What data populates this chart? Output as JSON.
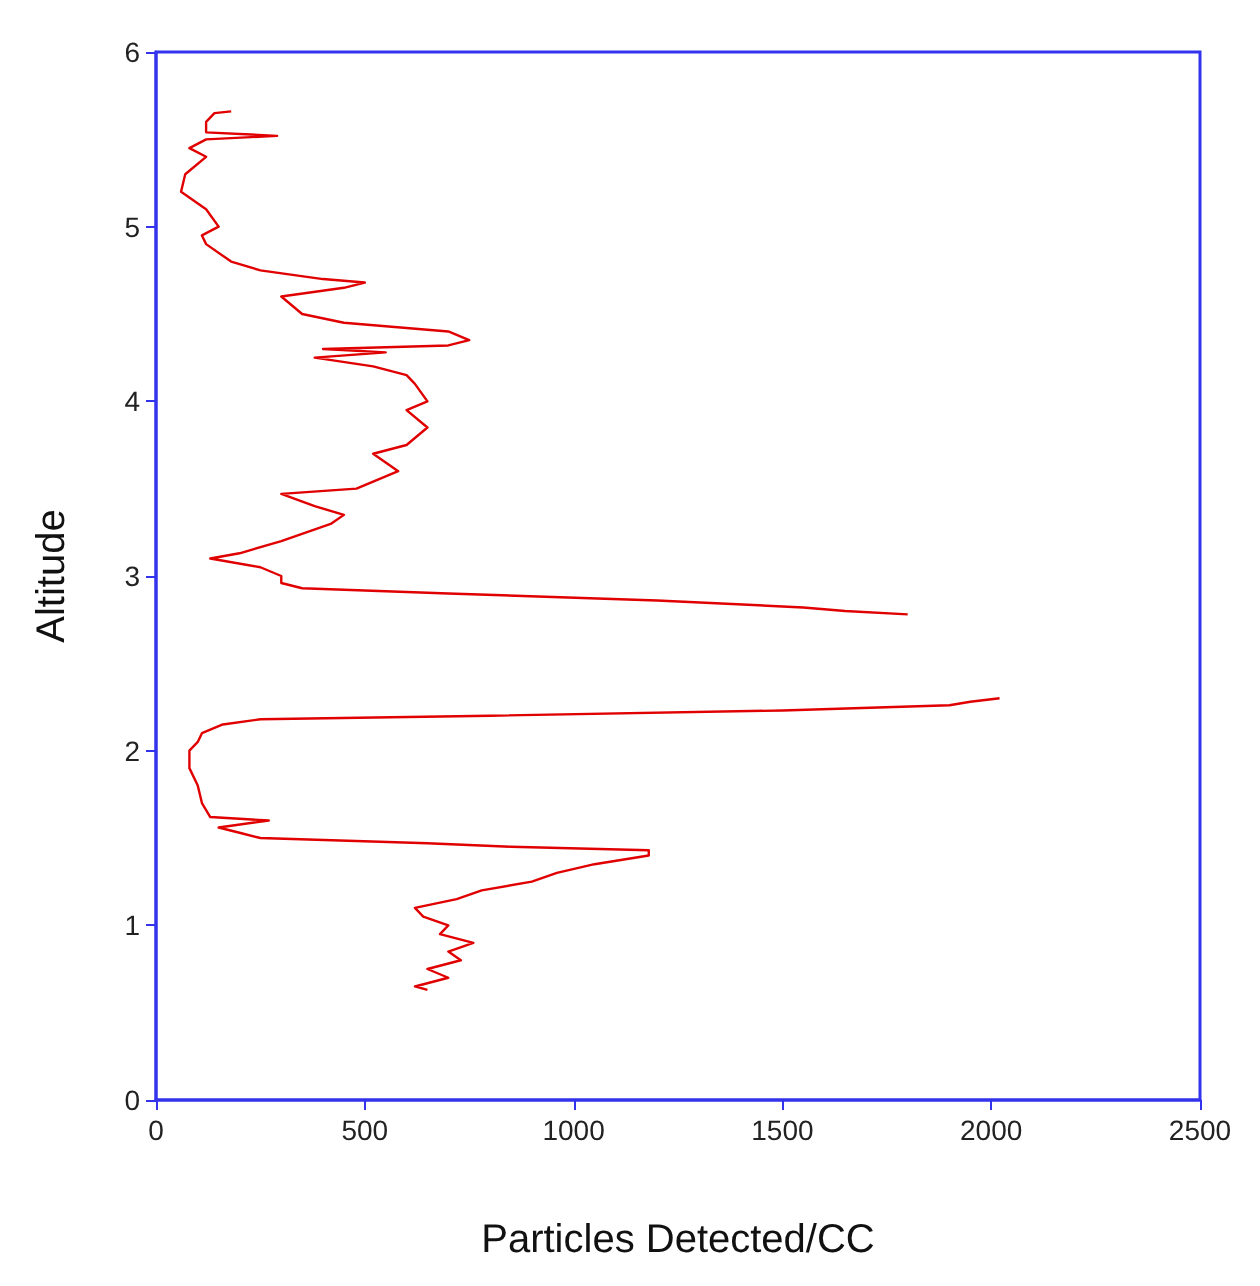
{
  "chart_data": {
    "type": "line",
    "xlabel": "Particles Detected/CC",
    "ylabel": "Altitude",
    "xlim": [
      0,
      2500
    ],
    "xticks": [
      0,
      500,
      1000,
      1500,
      2000,
      2500
    ],
    "ylim": [
      0,
      6
    ],
    "yticks": [
      0,
      1,
      2,
      3,
      4,
      5,
      6
    ],
    "grid": false,
    "legend": false,
    "marker": "none",
    "line_style": "solid",
    "series": [
      {
        "color": "#e00000",
        "x": [
          650,
          620,
          700,
          650,
          730,
          700,
          760,
          680,
          700,
          640,
          620,
          720,
          780,
          900,
          960,
          1050,
          1180,
          1180,
          850,
          650,
          250,
          200,
          150,
          270,
          130,
          110,
          100,
          80,
          80,
          100,
          110,
          160,
          250,
          800,
          1500,
          1900,
          1950,
          2020,
          null,
          1800,
          1650,
          1550,
          1200,
          700,
          350,
          300,
          300,
          250,
          130,
          200,
          300,
          420,
          450,
          380,
          300,
          480,
          530,
          580,
          520,
          600,
          650,
          600,
          650,
          620,
          600,
          520,
          380,
          550,
          400,
          700,
          750,
          700,
          450,
          350,
          300,
          450,
          500,
          400,
          250,
          180,
          120,
          110,
          150,
          120,
          60,
          70,
          120,
          80,
          120,
          290,
          120,
          120,
          140,
          180
        ],
        "values": [
          0.63,
          0.65,
          0.7,
          0.75,
          0.8,
          0.85,
          0.9,
          0.95,
          1.0,
          1.05,
          1.1,
          1.15,
          1.2,
          1.25,
          1.3,
          1.35,
          1.4,
          1.43,
          1.45,
          1.47,
          1.5,
          1.53,
          1.56,
          1.6,
          1.62,
          1.7,
          1.8,
          1.9,
          2.0,
          2.05,
          2.1,
          2.15,
          2.18,
          2.2,
          2.23,
          2.26,
          2.28,
          2.3,
          null,
          2.78,
          2.8,
          2.82,
          2.86,
          2.9,
          2.93,
          2.96,
          3.0,
          3.05,
          3.1,
          3.13,
          3.2,
          3.3,
          3.35,
          3.4,
          3.47,
          3.5,
          3.55,
          3.6,
          3.7,
          3.75,
          3.85,
          3.95,
          4.0,
          4.1,
          4.15,
          4.2,
          4.25,
          4.28,
          4.3,
          4.32,
          4.35,
          4.4,
          4.45,
          4.5,
          4.6,
          4.65,
          4.68,
          4.7,
          4.75,
          4.8,
          4.9,
          4.95,
          5.0,
          5.1,
          5.2,
          5.3,
          5.4,
          5.45,
          5.5,
          5.52,
          5.54,
          5.6,
          5.65,
          5.66
        ]
      }
    ]
  }
}
